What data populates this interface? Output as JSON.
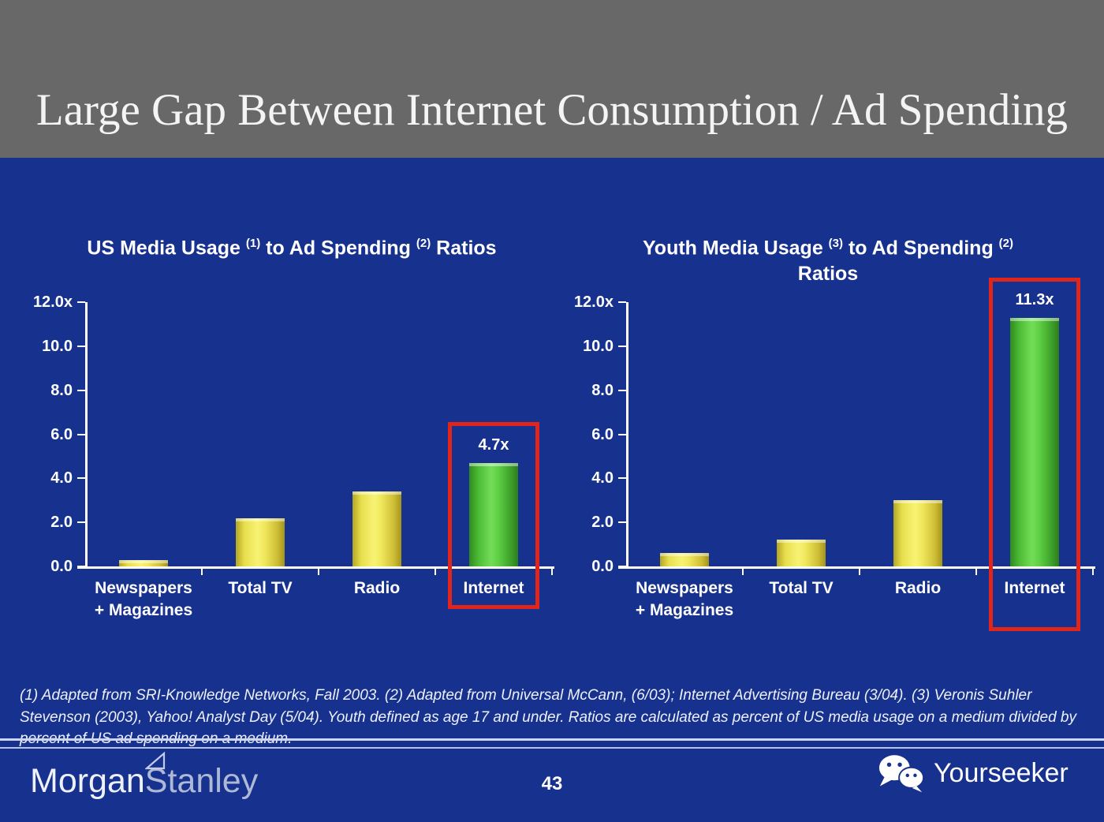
{
  "header": {
    "title": "Large Gap Between Internet Consumption / Ad Spending"
  },
  "chart_data": [
    {
      "type": "bar",
      "title": "US Media Usage (1) to Ad Spending (2) Ratios",
      "title_parts": [
        [
          "US Media Usage ",
          false
        ],
        [
          "(1)",
          true
        ],
        [
          " to Ad Spending ",
          false
        ],
        [
          "(2)",
          true
        ],
        [
          " Ratios",
          false
        ]
      ],
      "categories": [
        "Newspapers + Magazines",
        "Total TV",
        "Radio",
        "Internet"
      ],
      "category_lines": [
        [
          "Newspapers",
          "+ Magazines"
        ],
        [
          "Total TV"
        ],
        [
          "Radio"
        ],
        [
          "Internet"
        ]
      ],
      "values": [
        0.3,
        2.2,
        3.4,
        4.7
      ],
      "bar_colors": [
        "yellow",
        "yellow",
        "yellow",
        "green"
      ],
      "highlight": {
        "index": 3,
        "label": "4.7x"
      },
      "ylim": [
        0,
        12
      ],
      "yticks": [
        "12.0x",
        "10.0",
        "8.0",
        "6.0",
        "4.0",
        "2.0",
        "0.0"
      ],
      "grid": false,
      "legend": null,
      "xlabel": "",
      "ylabel": ""
    },
    {
      "type": "bar",
      "title": "Youth Media Usage (3) to Ad Spending (2) Ratios",
      "title_parts": [
        [
          "Youth Media Usage ",
          false
        ],
        [
          "(3)",
          true
        ],
        [
          " to Ad Spending ",
          false
        ],
        [
          "(2)",
          true
        ],
        [
          "\n",
          false
        ],
        [
          "Ratios",
          false
        ]
      ],
      "categories": [
        "Newspapers + Magazines",
        "Total TV",
        "Radio",
        "Internet"
      ],
      "category_lines": [
        [
          "Newspapers",
          "+ Magazines"
        ],
        [
          "Total TV"
        ],
        [
          "Radio"
        ],
        [
          "Internet"
        ]
      ],
      "values": [
        0.6,
        1.2,
        3.0,
        11.3
      ],
      "bar_colors": [
        "yellow",
        "yellow",
        "yellow",
        "green"
      ],
      "highlight": {
        "index": 3,
        "label": "11.3x"
      },
      "ylim": [
        0,
        12
      ],
      "yticks": [
        "12.0x",
        "10.0",
        "8.0",
        "6.0",
        "4.0",
        "2.0",
        "0.0"
      ],
      "grid": false,
      "legend": null,
      "xlabel": "",
      "ylabel": ""
    }
  ],
  "footnote": "(1) Adapted from SRI-Knowledge Networks, Fall 2003.  (2) Adapted from Universal McCann, (6/03); Internet Advertising Bureau (3/04). (3) Veronis Suhler Stevenson (2003), Yahoo! Analyst Day (5/04).  Youth defined as age 17 and under.  Ratios are calculated as percent of US media usage on a medium divided by percent of US ad spending on a medium.",
  "footer": {
    "brand_part1": "Morgan",
    "brand_part2": "Stanley",
    "page_number": "43",
    "watermark": "Yourseeker"
  },
  "colors": {
    "background_blue": "#17318f",
    "header_gray": "#686868",
    "bar_yellow": "#f0e85c",
    "bar_green": "#56c93e",
    "highlight_red": "#e1251b",
    "text_white": "#ffffff"
  }
}
